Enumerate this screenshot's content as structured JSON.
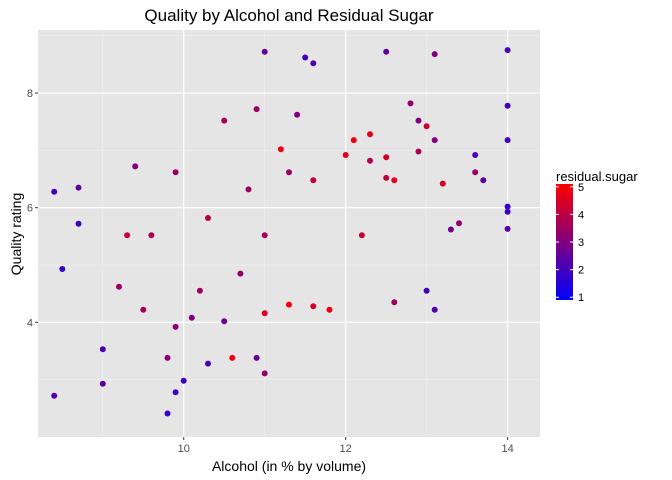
{
  "chart_data": {
    "type": "scatter",
    "title": "Quality by Alcohol and Residual Sugar",
    "xlabel": "Alcohol (in % by volume)",
    "ylabel": "Quality rating",
    "xlim": [
      8.2,
      14.4
    ],
    "ylim": [
      2.0,
      9.1
    ],
    "x_ticks": [
      10,
      12,
      14
    ],
    "y_ticks": [
      4,
      6,
      8
    ],
    "grid": true,
    "legend": {
      "title": "residual.sugar",
      "placement": "right",
      "ticks": [
        1,
        2,
        3,
        4,
        5
      ],
      "range": [
        0.9,
        5.1
      ],
      "color_low": "#0000ff",
      "color_high": "#ff0000"
    },
    "colors": {
      "panel": "#e5e5e5",
      "grid_major": "#ffffff",
      "grid_minor": "#f1f1f1"
    },
    "points": [
      [
        8.4,
        6.28,
        2.0
      ],
      [
        8.4,
        2.72,
        2.3
      ],
      [
        8.5,
        4.93,
        1.8
      ],
      [
        8.7,
        6.35,
        2.5
      ],
      [
        8.7,
        5.72,
        1.9
      ],
      [
        9.0,
        3.53,
        2.1
      ],
      [
        9.0,
        2.93,
        2.4
      ],
      [
        9.8,
        2.41,
        1.7
      ],
      [
        9.9,
        2.78,
        2.0
      ],
      [
        10.0,
        2.98,
        1.9
      ],
      [
        9.8,
        3.38,
        3.2
      ],
      [
        10.3,
        3.28,
        2.2
      ],
      [
        10.6,
        3.38,
        4.8
      ],
      [
        11.0,
        3.11,
        3.4
      ],
      [
        10.9,
        3.38,
        2.6
      ],
      [
        11.0,
        8.72,
        2.6
      ],
      [
        11.5,
        8.62,
        2.0
      ],
      [
        11.6,
        8.52,
        2.2
      ],
      [
        12.5,
        8.72,
        2.5
      ],
      [
        13.1,
        8.68,
        3.0
      ],
      [
        14.0,
        8.75,
        2.2
      ],
      [
        14.0,
        7.78,
        2.0
      ],
      [
        14.0,
        7.18,
        2.1
      ],
      [
        14.0,
        6.02,
        1.8
      ],
      [
        14.0,
        5.93,
        2.0
      ],
      [
        14.0,
        5.63,
        2.4
      ],
      [
        13.6,
        6.92,
        2.2
      ],
      [
        13.6,
        6.62,
        3.4
      ],
      [
        13.7,
        6.48,
        2.5
      ],
      [
        13.4,
        5.73,
        3.3
      ],
      [
        13.3,
        5.62,
        2.8
      ],
      [
        13.0,
        4.55,
        2.0
      ],
      [
        13.1,
        4.22,
        2.2
      ],
      [
        12.6,
        4.35,
        3.4
      ],
      [
        11.8,
        4.22,
        4.7
      ],
      [
        11.6,
        4.28,
        4.4
      ],
      [
        11.3,
        4.31,
        5.0
      ],
      [
        11.0,
        4.16,
        4.5
      ],
      [
        13.0,
        7.42,
        4.3
      ],
      [
        13.1,
        7.18,
        3.1
      ],
      [
        12.8,
        7.82,
        3.4
      ],
      [
        12.9,
        7.52,
        3.0
      ],
      [
        12.3,
        7.28,
        4.6
      ],
      [
        12.1,
        7.18,
        4.8
      ],
      [
        12.5,
        6.88,
        4.4
      ],
      [
        12.5,
        6.52,
        4.1
      ],
      [
        12.6,
        6.48,
        4.6
      ],
      [
        12.0,
        6.92,
        4.5
      ],
      [
        11.6,
        6.48,
        4.1
      ],
      [
        11.2,
        7.02,
        4.8
      ],
      [
        13.2,
        6.42,
        4.4
      ],
      [
        12.3,
        6.82,
        3.8
      ],
      [
        12.9,
        6.98,
        3.7
      ],
      [
        12.2,
        5.52,
        4.2
      ],
      [
        11.3,
        6.62,
        3.5
      ],
      [
        11.0,
        5.52,
        3.6
      ],
      [
        10.8,
        6.32,
        3.5
      ],
      [
        10.3,
        5.82,
        3.9
      ],
      [
        10.7,
        4.85,
        3.3
      ],
      [
        10.2,
        4.55,
        3.5
      ],
      [
        10.5,
        7.52,
        3.6
      ],
      [
        10.9,
        7.72,
        3.4
      ],
      [
        11.4,
        7.62,
        3.0
      ],
      [
        9.9,
        6.62,
        3.4
      ],
      [
        9.6,
        5.52,
        3.7
      ],
      [
        9.3,
        5.52,
        4.2
      ],
      [
        9.4,
        6.72,
        3.1
      ],
      [
        9.2,
        4.62,
        3.5
      ],
      [
        9.5,
        4.22,
        3.6
      ],
      [
        9.9,
        3.92,
        3.2
      ],
      [
        10.1,
        4.08,
        3.0
      ],
      [
        10.5,
        4.02,
        2.7
      ]
    ]
  }
}
